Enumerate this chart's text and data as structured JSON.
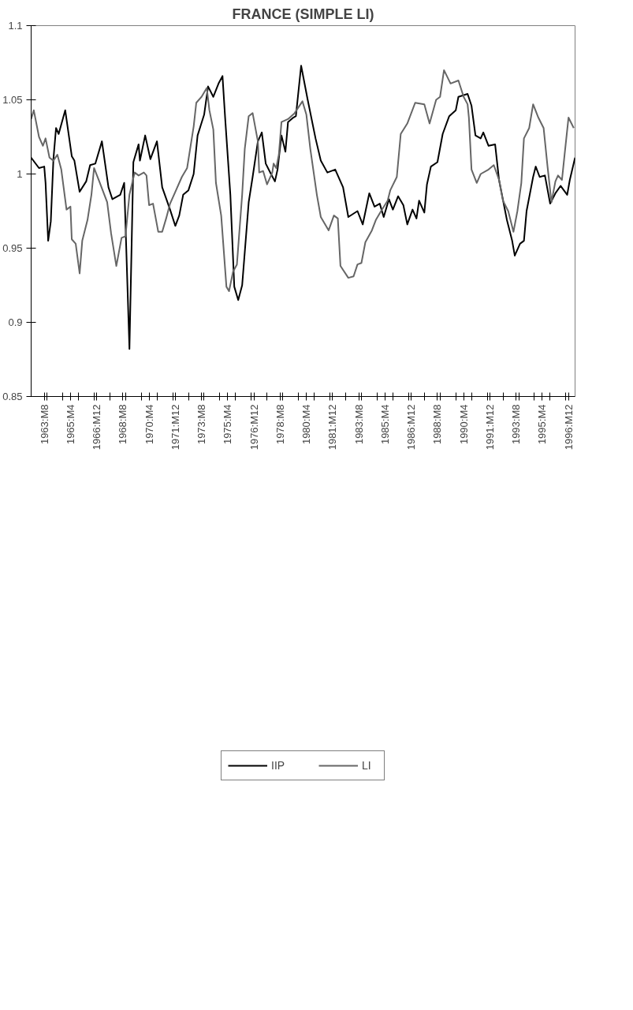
{
  "chart_data": {
    "type": "line",
    "title": "FRANCE (SIMPLE LI)",
    "xlim": [
      "1962-10",
      "1997-05"
    ],
    "ylim": [
      0.85,
      1.1
    ],
    "yticks": [
      0.85,
      0.9,
      0.95,
      1,
      1.05,
      1.1
    ],
    "xticks": [
      {
        "value": "1963-08",
        "label": "1963:M8"
      },
      {
        "value": "1965-04",
        "label": "1965:M4"
      },
      {
        "value": "1966-12",
        "label": "1966:M12"
      },
      {
        "value": "1968-08",
        "label": "1968:M8"
      },
      {
        "value": "1970-04",
        "label": "1970:M4"
      },
      {
        "value": "1971-12",
        "label": "1971:M12"
      },
      {
        "value": "1973-08",
        "label": "1973:M8"
      },
      {
        "value": "1975-04",
        "label": "1975:M4"
      },
      {
        "value": "1976-12",
        "label": "1976:M12"
      },
      {
        "value": "1978-08",
        "label": "1978:M8"
      },
      {
        "value": "1980-04",
        "label": "1980:M4"
      },
      {
        "value": "1981-12",
        "label": "1981:M12"
      },
      {
        "value": "1983-08",
        "label": "1983:M8"
      },
      {
        "value": "1985-04",
        "label": "1985:M4"
      },
      {
        "value": "1986-12",
        "label": "1986:M12"
      },
      {
        "value": "1988-08",
        "label": "1988:M8"
      },
      {
        "value": "1990-04",
        "label": "1990:M4"
      },
      {
        "value": "1991-12",
        "label": "1991:M12"
      },
      {
        "value": "1993-08",
        "label": "1993:M8"
      },
      {
        "value": "1995-04",
        "label": "1995:M4"
      },
      {
        "value": "1996-12",
        "label": "1996:M12"
      },
      {
        "value": "1963-10",
        "label": null
      },
      {
        "value": "1964-10",
        "label": null
      },
      {
        "value": "1965-10",
        "label": null
      },
      {
        "value": "1966-10",
        "label": null
      },
      {
        "value": "1967-10",
        "label": null
      },
      {
        "value": "1968-10",
        "label": null
      },
      {
        "value": "1969-10",
        "label": null
      },
      {
        "value": "1970-10",
        "label": null
      },
      {
        "value": "1971-10",
        "label": null
      },
      {
        "value": "1972-10",
        "label": null
      },
      {
        "value": "1973-10",
        "label": null
      },
      {
        "value": "1974-10",
        "label": null
      },
      {
        "value": "1975-10",
        "label": null
      },
      {
        "value": "1976-10",
        "label": null
      },
      {
        "value": "1977-10",
        "label": null
      },
      {
        "value": "1978-10",
        "label": null
      },
      {
        "value": "1979-10",
        "label": null
      },
      {
        "value": "1980-10",
        "label": null
      },
      {
        "value": "1981-10",
        "label": null
      },
      {
        "value": "1982-10",
        "label": null
      },
      {
        "value": "1983-10",
        "label": null
      },
      {
        "value": "1984-10",
        "label": null
      },
      {
        "value": "1985-10",
        "label": null
      },
      {
        "value": "1986-10",
        "label": null
      },
      {
        "value": "1987-10",
        "label": null
      },
      {
        "value": "1988-10",
        "label": null
      },
      {
        "value": "1989-10",
        "label": null
      },
      {
        "value": "1990-10",
        "label": null
      },
      {
        "value": "1991-10",
        "label": null
      },
      {
        "value": "1992-10",
        "label": null
      },
      {
        "value": "1993-10",
        "label": null
      },
      {
        "value": "1994-10",
        "label": null
      },
      {
        "value": "1995-10",
        "label": null
      },
      {
        "value": "1996-10",
        "label": null
      }
    ],
    "legend": "bottom",
    "series": [
      {
        "name": "IIP",
        "color": "#000000",
        "x": [
          "1962-10",
          "1963-04",
          "1963-08",
          "1963-09",
          "1963-11",
          "1964-01",
          "1964-03",
          "1964-05",
          "1964-07",
          "1964-12",
          "1965-05",
          "1965-07",
          "1965-11",
          "1966-04",
          "1966-07",
          "1966-11",
          "1967-04",
          "1967-09",
          "1967-12",
          "1968-06",
          "1968-09",
          "1969-01",
          "1969-04",
          "1969-08",
          "1969-09",
          "1970-01",
          "1970-05",
          "1970-10",
          "1971-02",
          "1971-08",
          "1971-12",
          "1972-03",
          "1972-06",
          "1972-10",
          "1973-02",
          "1973-05",
          "1973-10",
          "1974-01",
          "1974-05",
          "1974-09",
          "1974-12",
          "1975-02",
          "1975-06",
          "1975-09",
          "1975-12",
          "1976-03",
          "1976-08",
          "1976-11",
          "1977-03",
          "1977-06",
          "1977-09",
          "1978-01",
          "1978-04",
          "1978-06",
          "1978-09",
          "1978-12",
          "1979-02",
          "1979-06",
          "1979-08",
          "1979-12",
          "1980-05",
          "1980-11",
          "1981-03",
          "1981-08",
          "1982-02",
          "1982-08",
          "1982-12",
          "1983-07",
          "1983-11",
          "1984-04",
          "1984-08",
          "1984-12",
          "1985-03",
          "1985-07",
          "1985-10",
          "1986-02",
          "1986-06",
          "1986-09",
          "1987-01",
          "1987-04",
          "1987-06",
          "1987-10",
          "1987-12",
          "1988-03",
          "1988-08",
          "1988-12",
          "1989-05",
          "1989-10",
          "1989-12",
          "1990-07",
          "1990-10",
          "1991-01",
          "1991-05",
          "1991-07",
          "1991-11",
          "1992-04",
          "1992-07",
          "1993-01",
          "1993-05",
          "1993-07",
          "1993-11",
          "1994-02",
          "1994-04",
          "1994-09",
          "1994-11",
          "1995-02",
          "1995-06",
          "1995-10",
          "1996-02",
          "1996-06",
          "1996-11",
          "1997-01",
          "1997-05"
        ],
        "values": [
          1.011,
          1.004,
          1.005,
          0.994,
          0.955,
          0.968,
          1.01,
          1.031,
          1.027,
          1.043,
          1.012,
          1.009,
          0.988,
          0.995,
          1.006,
          1.007,
          1.022,
          0.991,
          0.983,
          0.986,
          0.994,
          0.882,
          1.008,
          1.02,
          1.009,
          1.026,
          1.01,
          1.022,
          0.991,
          0.976,
          0.965,
          0.972,
          0.986,
          0.989,
          1.0,
          1.026,
          1.04,
          1.059,
          1.052,
          1.061,
          1.066,
          1.038,
          0.986,
          0.924,
          0.915,
          0.925,
          0.981,
          0.998,
          1.022,
          1.028,
          1.007,
          1.0,
          0.995,
          1.003,
          1.026,
          1.015,
          1.035,
          1.038,
          1.039,
          1.073,
          1.05,
          1.024,
          1.009,
          1.001,
          1.003,
          0.991,
          0.971,
          0.975,
          0.966,
          0.987,
          0.978,
          0.98,
          0.971,
          0.983,
          0.976,
          0.985,
          0.979,
          0.966,
          0.976,
          0.97,
          0.982,
          0.974,
          0.993,
          1.005,
          1.008,
          1.027,
          1.039,
          1.043,
          1.052,
          1.054,
          1.046,
          1.026,
          1.024,
          1.028,
          1.019,
          1.02,
          0.996,
          0.969,
          0.955,
          0.945,
          0.953,
          0.955,
          0.975,
          0.998,
          1.005,
          0.998,
          0.999,
          0.98,
          0.987,
          0.992,
          0.986,
          0.996,
          1.011
        ]
      },
      {
        "name": "LI",
        "color": "#666666",
        "x": [
          "1962-10",
          "1962-12",
          "1963-04",
          "1963-07",
          "1963-09",
          "1963-12",
          "1964-03",
          "1964-06",
          "1964-09",
          "1965-01",
          "1965-04",
          "1965-05",
          "1965-08",
          "1965-11",
          "1966-01",
          "1966-05",
          "1966-08",
          "1966-10",
          "1967-02",
          "1967-08",
          "1967-11",
          "1968-03",
          "1968-07",
          "1968-10",
          "1969-01",
          "1969-05",
          "1969-08",
          "1969-12",
          "1970-02",
          "1970-04",
          "1970-07",
          "1970-11",
          "1971-02",
          "1971-05",
          "1971-08",
          "1971-12",
          "1972-05",
          "1972-09",
          "1973-02",
          "1973-04",
          "1973-08",
          "1973-12",
          "1974-02",
          "1974-05",
          "1974-07",
          "1974-11",
          "1975-03",
          "1975-05",
          "1975-08",
          "1975-11",
          "1976-03",
          "1976-05",
          "1976-08",
          "1976-11",
          "1977-03",
          "1977-04",
          "1977-07",
          "1977-10",
          "1978-02",
          "1978-03",
          "1978-05",
          "1978-07",
          "1978-09",
          "1979-02",
          "1979-07",
          "1980-01",
          "1980-04",
          "1980-07",
          "1980-12",
          "1981-03",
          "1981-09",
          "1982-01",
          "1982-04",
          "1982-06",
          "1982-12",
          "1983-04",
          "1983-07",
          "1983-10",
          "1984-01",
          "1984-06",
          "1984-09",
          "1985-01",
          "1985-06",
          "1985-08",
          "1986-01",
          "1986-04",
          "1986-09",
          "1987-03",
          "1987-10",
          "1988-02",
          "1988-07",
          "1988-10",
          "1989-01",
          "1989-06",
          "1989-12",
          "1990-04",
          "1990-07",
          "1990-08",
          "1990-10",
          "1991-02",
          "1991-05",
          "1991-11",
          "1992-03",
          "1992-07",
          "1992-10",
          "1993-02",
          "1993-06",
          "1993-09",
          "1993-12",
          "1994-02",
          "1994-06",
          "1994-09",
          "1995-01",
          "1995-05",
          "1995-08",
          "1995-11",
          "1996-02",
          "1996-04",
          "1996-07",
          "1996-09",
          "1996-12",
          "1997-04"
        ],
        "values": [
          1.037,
          1.043,
          1.025,
          1.019,
          1.024,
          1.011,
          1.009,
          1.013,
          1.003,
          0.976,
          0.978,
          0.956,
          0.953,
          0.933,
          0.955,
          0.969,
          0.986,
          1.004,
          0.995,
          0.981,
          0.96,
          0.938,
          0.957,
          0.958,
          0.986,
          1.001,
          0.999,
          1.001,
          0.999,
          0.979,
          0.98,
          0.961,
          0.961,
          0.97,
          0.98,
          0.988,
          0.998,
          1.004,
          1.032,
          1.048,
          1.052,
          1.058,
          1.043,
          1.03,
          0.994,
          0.972,
          0.924,
          0.921,
          0.934,
          0.939,
          0.986,
          1.017,
          1.039,
          1.041,
          1.022,
          1.001,
          1.002,
          0.993,
          1.001,
          1.007,
          1.004,
          1.013,
          1.035,
          1.037,
          1.041,
          1.049,
          1.04,
          1.017,
          0.986,
          0.971,
          0.962,
          0.972,
          0.97,
          0.938,
          0.93,
          0.931,
          0.939,
          0.94,
          0.954,
          0.962,
          0.969,
          0.975,
          0.982,
          0.989,
          0.998,
          1.027,
          1.034,
          1.048,
          1.047,
          1.034,
          1.05,
          1.052,
          1.07,
          1.061,
          1.063,
          1.052,
          1.047,
          1.038,
          1.003,
          0.994,
          1.0,
          1.003,
          1.006,
          0.996,
          0.982,
          0.975,
          0.961,
          0.975,
          0.994,
          1.024,
          1.031,
          1.047,
          1.038,
          1.031,
          1.005,
          0.981,
          0.995,
          0.999,
          0.996,
          1.013,
          1.038,
          1.031
        ]
      }
    ]
  }
}
